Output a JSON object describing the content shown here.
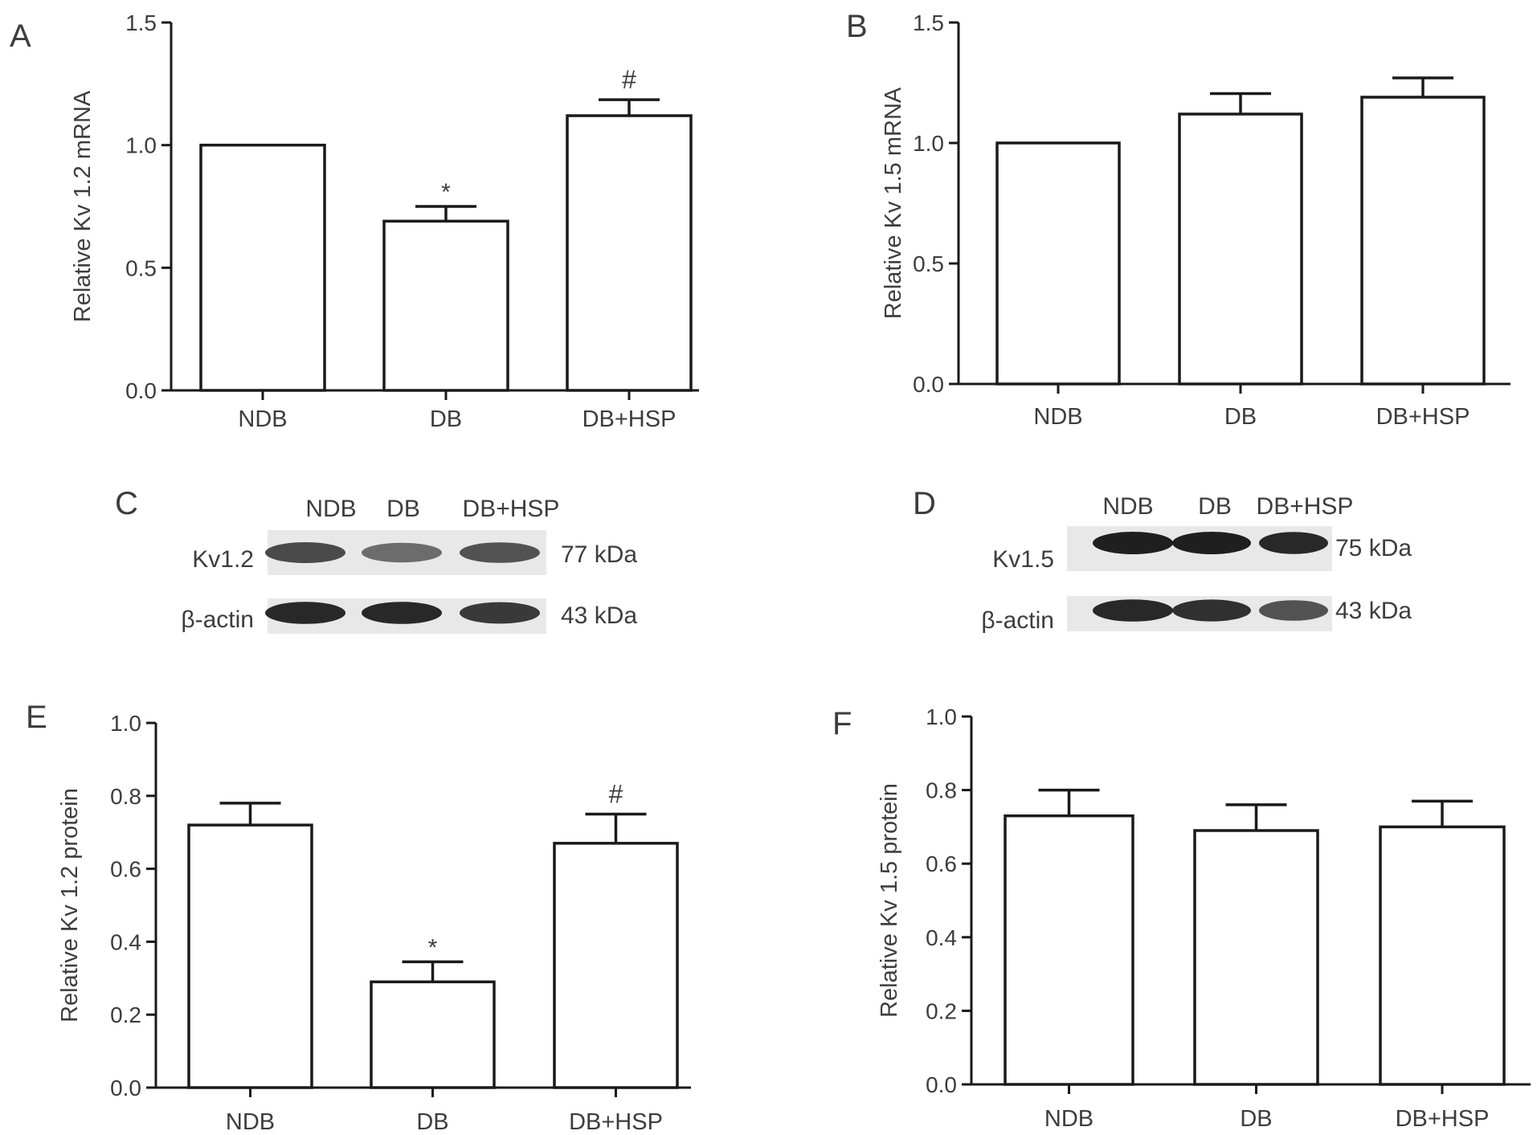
{
  "chart_data": [
    {
      "panel": "A",
      "type": "bar",
      "categories": [
        "NDB",
        "DB",
        "DB+HSP"
      ],
      "values": [
        1.0,
        0.69,
        1.12
      ],
      "errors": [
        0,
        0.06,
        0.065
      ],
      "annotations": [
        "",
        "*",
        "#"
      ],
      "ylabel": "Relative Kv 1.2 mRNA",
      "ylim": [
        0,
        1.5
      ],
      "yticks": [
        "0.0",
        "0.5",
        "1.0",
        "1.5"
      ]
    },
    {
      "panel": "B",
      "type": "bar",
      "categories": [
        "NDB",
        "DB",
        "DB+HSP"
      ],
      "values": [
        1.0,
        1.12,
        1.19
      ],
      "errors": [
        0,
        0.085,
        0.08
      ],
      "annotations": [
        "",
        "",
        ""
      ],
      "ylabel": "Relative Kv 1.5 mRNA",
      "ylim": [
        0,
        1.5
      ],
      "yticks": [
        "0.0",
        "0.5",
        "1.0",
        "1.5"
      ]
    },
    {
      "panel": "E",
      "type": "bar",
      "categories": [
        "NDB",
        "DB",
        "DB+HSP"
      ],
      "values": [
        0.72,
        0.29,
        0.67
      ],
      "errors": [
        0.06,
        0.055,
        0.08
      ],
      "annotations": [
        "",
        "*",
        "#"
      ],
      "ylabel": "Relative Kv 1.2 protein",
      "ylim": [
        0,
        1.0
      ],
      "yticks": [
        "0.0",
        "0.2",
        "0.4",
        "0.6",
        "0.8",
        "1.0"
      ]
    },
    {
      "panel": "F",
      "type": "bar",
      "categories": [
        "NDB",
        "DB",
        "DB+HSP"
      ],
      "values": [
        0.73,
        0.69,
        0.7
      ],
      "errors": [
        0.07,
        0.07,
        0.07
      ],
      "annotations": [
        "",
        "",
        ""
      ],
      "ylabel": "Relative Kv 1.5 protein",
      "ylim": [
        0,
        1.0
      ],
      "yticks": [
        "0.0",
        "0.2",
        "0.4",
        "0.6",
        "0.8",
        "1.0"
      ]
    }
  ],
  "blots": [
    {
      "panel": "C",
      "lanes": [
        "NDB",
        "DB",
        "DB+HSP"
      ],
      "rows": [
        {
          "label": "Kv1.2",
          "size": "77 kDa",
          "intensities": [
            0.75,
            0.55,
            0.7
          ]
        },
        {
          "label": "β-actin",
          "size": "43 kDa",
          "intensities": [
            0.95,
            0.95,
            0.85
          ]
        }
      ]
    },
    {
      "panel": "D",
      "lanes": [
        "NDB",
        "DB",
        "DB+HSP"
      ],
      "rows": [
        {
          "label": "Kv1.5",
          "size": "75 kDa",
          "intensities": [
            1.0,
            1.0,
            0.95
          ]
        },
        {
          "label": "β-actin",
          "size": "43 kDa",
          "intensities": [
            0.95,
            0.9,
            0.7
          ]
        }
      ]
    }
  ]
}
